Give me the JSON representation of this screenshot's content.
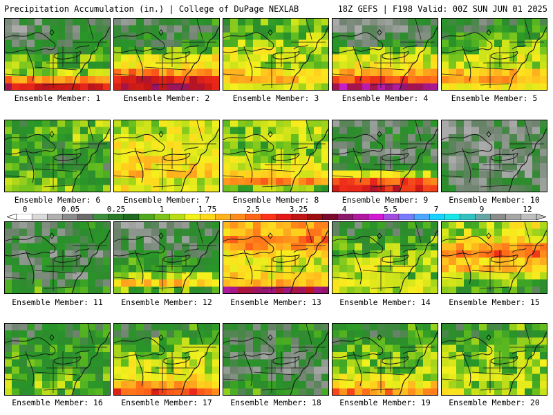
{
  "header": {
    "title": "Precipitation Accumulation (in.) | College of DuPage NEXLAB",
    "run_info": "18Z GEFS | F198 Valid: 00Z SUN JUN 01 2025"
  },
  "panels": [
    {
      "label": "Ensemble Member: 1",
      "intensity": [
        0.4,
        0.5,
        0.55,
        0.6,
        0.9,
        1.2,
        2.2,
        3.0
      ]
    },
    {
      "label": "Ensemble Member: 2",
      "intensity": [
        0.5,
        0.6,
        0.7,
        0.9,
        1.5,
        2.2,
        3.0,
        3.2
      ]
    },
    {
      "label": "Ensemble Member: 3",
      "intensity": [
        0.9,
        1.0,
        1.2,
        1.3,
        1.2,
        1.6,
        1.8,
        1.5
      ]
    },
    {
      "label": "Ensemble Member: 4",
      "intensity": [
        0.3,
        0.5,
        0.6,
        1.1,
        1.4,
        1.9,
        2.6,
        3.6
      ]
    },
    {
      "label": "Ensemble Member: 5",
      "intensity": [
        0.6,
        0.8,
        1.0,
        1.1,
        1.3,
        1.8,
        2.0,
        1.5
      ]
    },
    {
      "label": "Ensemble Member: 6",
      "intensity": [
        0.9,
        1.0,
        0.8,
        0.9,
        0.7,
        0.8,
        0.9,
        1.2
      ]
    },
    {
      "label": "Ensemble Member: 7",
      "intensity": [
        1.3,
        1.4,
        1.5,
        1.4,
        1.6,
        1.8,
        1.4,
        1.5
      ]
    },
    {
      "label": "Ensemble Member: 8",
      "intensity": [
        1.2,
        1.1,
        1.0,
        1.1,
        1.3,
        1.5,
        2.2,
        1.0
      ]
    },
    {
      "label": "Ensemble Member: 9",
      "intensity": [
        0.4,
        0.5,
        0.5,
        0.4,
        0.6,
        1.3,
        2.5,
        3.0
      ]
    },
    {
      "label": "Ensemble Member: 10",
      "intensity": [
        0.3,
        0.3,
        0.25,
        0.3,
        0.35,
        0.3,
        0.4,
        0.5
      ]
    },
    {
      "label": "Ensemble Member: 11",
      "intensity": [
        0.5,
        0.5,
        0.6,
        0.4,
        0.5,
        0.4,
        0.6,
        0.8
      ]
    },
    {
      "label": "Ensemble Member: 12",
      "intensity": [
        0.3,
        0.4,
        0.5,
        0.6,
        0.8,
        1.2,
        1.8,
        0.9
      ]
    },
    {
      "label": "Ensemble Member: 13",
      "intensity": [
        2.0,
        2.3,
        2.2,
        1.6,
        1.4,
        1.6,
        2.0,
        3.6
      ]
    },
    {
      "label": "Ensemble Member: 14",
      "intensity": [
        0.6,
        0.8,
        0.9,
        1.0,
        1.2,
        1.1,
        1.5,
        1.3
      ]
    },
    {
      "label": "Ensemble Member: 15",
      "intensity": [
        1.3,
        1.5,
        2.0,
        2.4,
        1.8,
        1.2,
        1.0,
        0.8
      ]
    },
    {
      "label": "Ensemble Member: 16",
      "intensity": [
        0.6,
        0.7,
        0.8,
        0.9,
        0.8,
        0.9,
        1.0,
        0.9
      ]
    },
    {
      "label": "Ensemble Member: 17",
      "intensity": [
        0.7,
        0.9,
        1.0,
        1.1,
        1.3,
        1.6,
        2.0,
        2.6
      ]
    },
    {
      "label": "Ensemble Member: 18",
      "intensity": [
        0.5,
        0.6,
        0.5,
        0.4,
        0.4,
        0.5,
        0.6,
        0.7
      ]
    },
    {
      "label": "Ensemble Member: 19",
      "intensity": [
        0.7,
        0.8,
        0.9,
        1.0,
        1.1,
        1.3,
        1.7,
        2.2
      ]
    },
    {
      "label": "Ensemble Member: 20",
      "intensity": [
        0.8,
        0.9,
        1.0,
        1.0,
        1.1,
        1.2,
        1.1,
        1.2
      ]
    }
  ],
  "colorbar": {
    "labels": [
      "0",
      "0.05",
      "0.25",
      "1",
      "1.75",
      "2.5",
      "3.25",
      "4",
      "5.5",
      "7",
      "9",
      "12"
    ],
    "colors": [
      "#ffffff",
      "#d9d9d9",
      "#b0b0b0",
      "#8c8c8c",
      "#6b6b6b",
      "#3b8e3b",
      "#2a7a2a",
      "#1f6b1f",
      "#4fa81e",
      "#7cc21a",
      "#b7dd14",
      "#f2f21a",
      "#ffd91a",
      "#ffb31a",
      "#ff8c1a",
      "#ff661a",
      "#ff331a",
      "#e61919",
      "#c21414",
      "#9e0e0e",
      "#7a0a2e",
      "#8c1a6b",
      "#b01aa0",
      "#d21ad2",
      "#a34de0",
      "#7a7aff",
      "#4da6ff",
      "#19d2ff",
      "#19e6e6",
      "#33c2c2",
      "#66a6a6",
      "#8c8c8c",
      "#a6a6a6",
      "#bfbfbf"
    ]
  }
}
